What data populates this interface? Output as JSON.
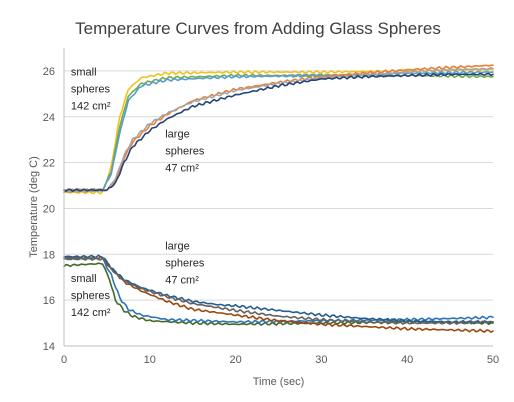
{
  "chart_data": {
    "type": "line",
    "title": "Temperature Curves from Adding Glass Spheres",
    "xlabel": "Time (sec)",
    "ylabel": "Temperature  (deg C)",
    "xlim": [
      0,
      50
    ],
    "ylim": [
      14,
      27
    ],
    "x_ticks": [
      "0",
      "10",
      "20",
      "30",
      "40",
      "50"
    ],
    "y_ticks": [
      "14",
      "16",
      "18",
      "20",
      "22",
      "24",
      "26"
    ],
    "grid": "horizontal",
    "legend": "none",
    "annotations": [
      {
        "lines": [
          "small",
          "spheres",
          "142 cm²"
        ],
        "x": 0.8,
        "y": 25.8
      },
      {
        "lines": [
          "large",
          "spheres",
          "47 cm²"
        ],
        "x": 11.8,
        "y": 23.1
      },
      {
        "lines": [
          "large",
          "spheres",
          "47 cm²"
        ],
        "x": 11.8,
        "y": 18.2
      },
      {
        "lines": [
          "small",
          "spheres",
          "142 cm²"
        ],
        "x": 0.8,
        "y": 16.8
      }
    ],
    "series": [
      {
        "color": "#f2c21a",
        "points": [
          [
            0,
            20.7
          ],
          [
            4.5,
            20.7
          ],
          [
            5.5,
            21.8
          ],
          [
            6.5,
            24.0
          ],
          [
            7.5,
            25.2
          ],
          [
            9,
            25.7
          ],
          [
            12,
            25.9
          ],
          [
            20,
            25.95
          ],
          [
            30,
            25.95
          ],
          [
            40,
            26.0
          ],
          [
            50,
            26.05
          ]
        ]
      },
      {
        "color": "#70ad47",
        "points": [
          [
            0,
            20.8
          ],
          [
            4.5,
            20.8
          ],
          [
            5.5,
            21.6
          ],
          [
            6.5,
            23.6
          ],
          [
            7.5,
            24.9
          ],
          [
            9,
            25.45
          ],
          [
            12,
            25.7
          ],
          [
            20,
            25.8
          ],
          [
            30,
            25.8
          ],
          [
            40,
            25.8
          ],
          [
            50,
            25.75
          ]
        ]
      },
      {
        "color": "#5b9bd5",
        "points": [
          [
            0,
            20.8
          ],
          [
            4.5,
            20.8
          ],
          [
            5.5,
            21.5
          ],
          [
            6.5,
            23.3
          ],
          [
            7.5,
            24.7
          ],
          [
            9,
            25.35
          ],
          [
            12,
            25.6
          ],
          [
            20,
            25.75
          ],
          [
            30,
            25.8
          ],
          [
            40,
            25.9
          ],
          [
            50,
            25.95
          ]
        ]
      },
      {
        "color": "#ed7d31",
        "points": [
          [
            0,
            20.75
          ],
          [
            5,
            20.8
          ],
          [
            6,
            21.2
          ],
          [
            7,
            22.2
          ],
          [
            8,
            22.9
          ],
          [
            10,
            23.6
          ],
          [
            12,
            24.1
          ],
          [
            15,
            24.7
          ],
          [
            20,
            25.2
          ],
          [
            25,
            25.5
          ],
          [
            30,
            25.75
          ],
          [
            35,
            25.9
          ],
          [
            40,
            26.05
          ],
          [
            45,
            26.15
          ],
          [
            50,
            26.25
          ]
        ]
      },
      {
        "color": "#a5a5a5",
        "points": [
          [
            0,
            20.75
          ],
          [
            5,
            20.8
          ],
          [
            6,
            21.3
          ],
          [
            7,
            22.3
          ],
          [
            8,
            23.0
          ],
          [
            10,
            23.7
          ],
          [
            12,
            24.15
          ],
          [
            15,
            24.65
          ],
          [
            20,
            25.15
          ],
          [
            25,
            25.45
          ],
          [
            30,
            25.7
          ],
          [
            35,
            25.8
          ],
          [
            40,
            25.95
          ],
          [
            45,
            26.05
          ],
          [
            50,
            26.1
          ]
        ]
      },
      {
        "color": "#264478",
        "points": [
          [
            0,
            20.8
          ],
          [
            5,
            20.8
          ],
          [
            6,
            21.1
          ],
          [
            7,
            22.0
          ],
          [
            8,
            22.7
          ],
          [
            10,
            23.4
          ],
          [
            12,
            23.9
          ],
          [
            15,
            24.45
          ],
          [
            20,
            24.95
          ],
          [
            25,
            25.35
          ],
          [
            30,
            25.65
          ],
          [
            35,
            25.75
          ],
          [
            40,
            25.8
          ],
          [
            45,
            25.85
          ],
          [
            50,
            25.85
          ]
        ]
      },
      {
        "color": "#43682b",
        "points": [
          [
            0,
            17.5
          ],
          [
            2,
            17.55
          ],
          [
            4.5,
            17.6
          ],
          [
            5.3,
            16.9
          ],
          [
            6,
            16.0
          ],
          [
            7,
            15.55
          ],
          [
            8,
            15.3
          ],
          [
            10,
            15.1
          ],
          [
            15,
            15.0
          ],
          [
            20,
            14.95
          ],
          [
            30,
            15.0
          ],
          [
            40,
            15.05
          ],
          [
            50,
            15.0
          ]
        ]
      },
      {
        "color": "#2e75b6",
        "points": [
          [
            0,
            17.8
          ],
          [
            4.5,
            17.8
          ],
          [
            5.5,
            17.1
          ],
          [
            6.5,
            16.1
          ],
          [
            7.5,
            15.6
          ],
          [
            9,
            15.35
          ],
          [
            12,
            15.15
          ],
          [
            20,
            15.05
          ],
          [
            30,
            15.1
          ],
          [
            40,
            15.15
          ],
          [
            50,
            15.25
          ]
        ]
      },
      {
        "color": "#9e480e",
        "points": [
          [
            0,
            17.85
          ],
          [
            4.5,
            17.85
          ],
          [
            5.5,
            17.4
          ],
          [
            7,
            16.8
          ],
          [
            9,
            16.4
          ],
          [
            12,
            15.95
          ],
          [
            15,
            15.6
          ],
          [
            20,
            15.35
          ],
          [
            25,
            15.1
          ],
          [
            30,
            14.95
          ],
          [
            35,
            14.85
          ],
          [
            40,
            14.75
          ],
          [
            45,
            14.7
          ],
          [
            50,
            14.65
          ]
        ]
      },
      {
        "color": "#255e91",
        "points": [
          [
            0,
            17.9
          ],
          [
            4.5,
            17.9
          ],
          [
            5.5,
            17.4
          ],
          [
            7,
            16.9
          ],
          [
            9,
            16.55
          ],
          [
            12,
            16.2
          ],
          [
            15,
            15.95
          ],
          [
            18,
            15.8
          ],
          [
            20,
            15.75
          ],
          [
            25,
            15.55
          ],
          [
            30,
            15.35
          ],
          [
            35,
            15.2
          ],
          [
            40,
            15.1
          ],
          [
            45,
            15.05
          ],
          [
            50,
            15.05
          ]
        ]
      },
      {
        "color": "#636363",
        "points": [
          [
            0,
            17.8
          ],
          [
            4.5,
            17.8
          ],
          [
            5.5,
            17.35
          ],
          [
            7,
            16.85
          ],
          [
            9,
            16.5
          ],
          [
            12,
            16.15
          ],
          [
            15,
            15.85
          ],
          [
            20,
            15.55
          ],
          [
            25,
            15.3
          ],
          [
            30,
            15.15
          ],
          [
            35,
            15.05
          ],
          [
            40,
            15.0
          ],
          [
            45,
            15.0
          ],
          [
            50,
            15.05
          ]
        ]
      }
    ]
  }
}
